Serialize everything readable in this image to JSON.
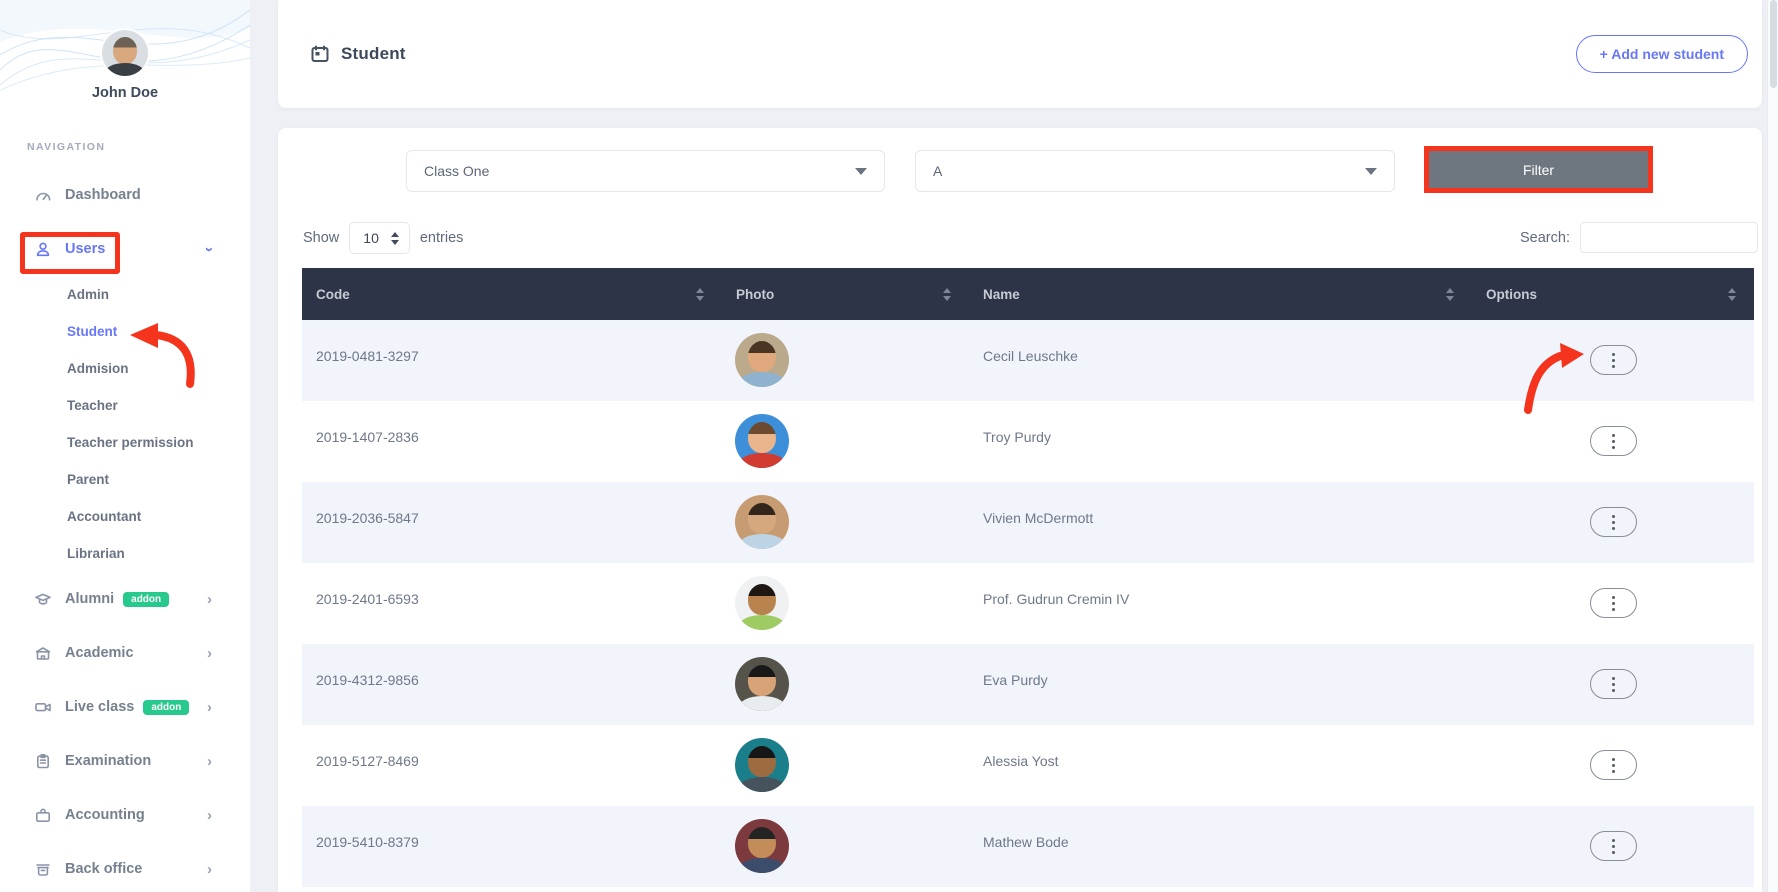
{
  "colors": {
    "accent": "#6777f8",
    "annotation_red": "#f4341c",
    "table_header_bg": "#2d3447",
    "badge_green": "#27c98c",
    "filter_button_bg": "#6e767f",
    "row_shaded": "#f1f4fa",
    "page_bg": "#eef0f5"
  },
  "sidebar": {
    "user_name": "John Doe",
    "section_label": "NAVIGATION",
    "items": [
      {
        "label": "Dashboard",
        "icon": "dashboard-icon"
      },
      {
        "label": "Users",
        "icon": "users-icon",
        "active": true,
        "chevron": "down",
        "children": [
          {
            "label": "Admin"
          },
          {
            "label": "Student",
            "active": true
          },
          {
            "label": "Admision"
          },
          {
            "label": "Teacher"
          },
          {
            "label": "Teacher permission"
          },
          {
            "label": "Parent"
          },
          {
            "label": "Accountant"
          },
          {
            "label": "Librarian"
          }
        ]
      },
      {
        "label": "Alumni",
        "icon": "alumni-icon",
        "badge": "addon",
        "chevron": "right"
      },
      {
        "label": "Academic",
        "icon": "academic-icon",
        "chevron": "right"
      },
      {
        "label": "Live class",
        "icon": "live-class-icon",
        "badge": "addon",
        "chevron": "right"
      },
      {
        "label": "Examination",
        "icon": "examination-icon",
        "chevron": "right"
      },
      {
        "label": "Accounting",
        "icon": "accounting-icon",
        "chevron": "right"
      },
      {
        "label": "Back office",
        "icon": "back-office-icon",
        "chevron": "right"
      }
    ]
  },
  "header": {
    "title": "Student",
    "add_button_label": "+ Add new student"
  },
  "filters": {
    "class_value": "Class One",
    "section_value": "A",
    "filter_button_label": "Filter"
  },
  "controls": {
    "show_label": "Show",
    "entries_per_page": "10",
    "entries_label": "entries",
    "search_label": "Search:",
    "search_value": ""
  },
  "table": {
    "columns": [
      {
        "label": "Code"
      },
      {
        "label": "Photo"
      },
      {
        "label": "Name"
      },
      {
        "label": "Options"
      }
    ],
    "rows": [
      {
        "code": "2019-0481-3297",
        "name": "Cecil Leuschke",
        "avatar": {
          "scene": "#bba98c",
          "hair": "#4a3423",
          "skin": "#e0a97d",
          "shirt": "#8fb3cf"
        }
      },
      {
        "code": "2019-1407-2836",
        "name": "Troy Purdy",
        "avatar": {
          "scene": "#3c8fd8",
          "hair": "#6b4a2f",
          "skin": "#eab58c",
          "shirt": "#d23b30"
        }
      },
      {
        "code": "2019-2036-5847",
        "name": "Vivien McDermott",
        "avatar": {
          "scene": "#c89c73",
          "hair": "#33261a",
          "skin": "#d6a87e",
          "shirt": "#bdd4e6"
        }
      },
      {
        "code": "2019-2401-6593",
        "name": "Prof. Gudrun Cremin IV",
        "avatar": {
          "scene": "#f0f1f2",
          "hair": "#1f1812",
          "skin": "#b9834f",
          "shirt": "#9ecb62"
        }
      },
      {
        "code": "2019-4312-9856",
        "name": "Eva Purdy",
        "avatar": {
          "scene": "#56544a",
          "hair": "#191919",
          "skin": "#d8a377",
          "shirt": "#e8ecef"
        }
      },
      {
        "code": "2019-5127-8469",
        "name": "Alessia Yost",
        "avatar": {
          "scene": "#1a7f8a",
          "hair": "#161616",
          "skin": "#9c6c40",
          "shirt": "#46525c"
        }
      },
      {
        "code": "2019-5410-8379",
        "name": "Mathew Bode",
        "avatar": {
          "scene": "#7c3a3e",
          "hair": "#242424",
          "skin": "#c28d58",
          "shirt": "#3c4d6b"
        }
      }
    ]
  }
}
